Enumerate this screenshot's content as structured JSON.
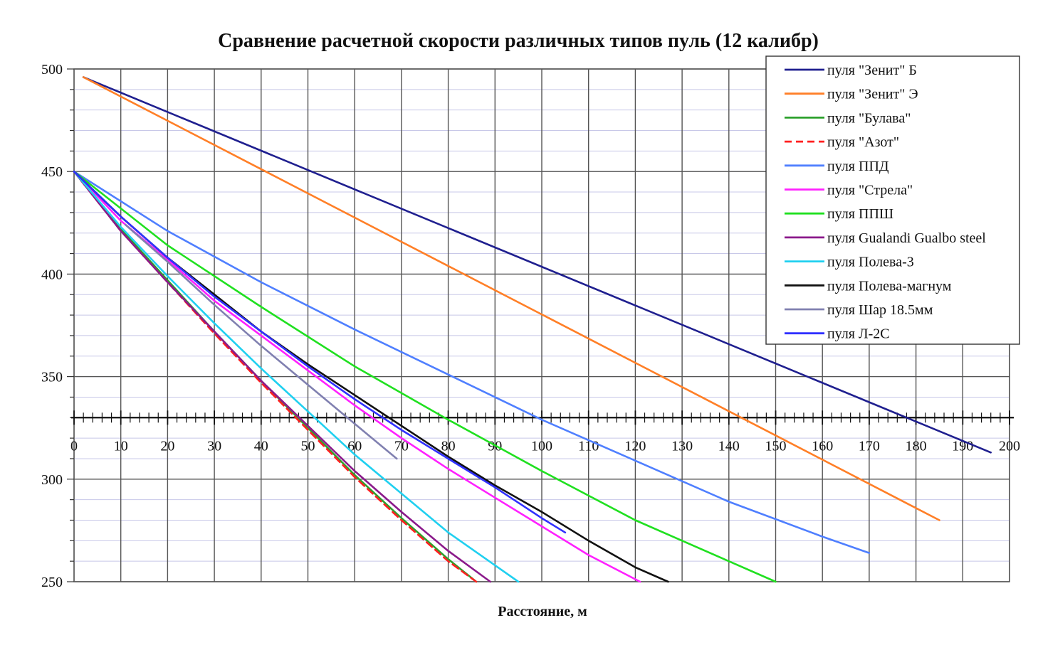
{
  "chart_data": {
    "type": "line",
    "title": "Сравнение расчетной скорости различных типов пуль (12 калибр)",
    "xlabel": "Расстояние, м",
    "ylabel": "",
    "xlim": [
      0,
      200
    ],
    "ylim": [
      250,
      500
    ],
    "x_ticks": [
      0,
      10,
      20,
      30,
      40,
      50,
      60,
      70,
      80,
      90,
      100,
      110,
      120,
      130,
      140,
      150,
      160,
      170,
      180,
      190,
      200
    ],
    "y_ticks": [
      250,
      300,
      350,
      400,
      450,
      500
    ],
    "x_axis_at_y": 330,
    "grid": true,
    "legend_position": "top-right",
    "series": [
      {
        "name": "пуля \"Зенит\" Б",
        "color": "#1f1f8f",
        "dash": false,
        "x": [
          2,
          196
        ],
        "y": [
          496,
          313
        ]
      },
      {
        "name": "пуля \"Зенит\" Э",
        "color": "#ff7f27",
        "dash": false,
        "x": [
          2,
          185
        ],
        "y": [
          496,
          280
        ]
      },
      {
        "name": "пуля \"Булава\"",
        "color": "#2ca02c",
        "dash": false,
        "x": [
          0,
          10,
          20,
          30,
          40,
          50,
          60,
          70,
          80,
          86
        ],
        "y": [
          450,
          422,
          397,
          372,
          348,
          325,
          302,
          281,
          261,
          250
        ]
      },
      {
        "name": "пуля \"Азот\"",
        "color": "#ff2020",
        "dash": true,
        "x": [
          0,
          10,
          20,
          30,
          40,
          50,
          60,
          70,
          80,
          86
        ],
        "y": [
          450,
          421,
          396,
          371,
          347,
          324,
          301,
          280,
          260,
          250
        ]
      },
      {
        "name": "пуля ППД",
        "color": "#4f7fff",
        "dash": false,
        "x": [
          0,
          20,
          40,
          60,
          80,
          100,
          120,
          140,
          160,
          170
        ],
        "y": [
          450,
          421,
          396,
          373,
          351,
          329,
          309,
          289,
          272,
          264
        ]
      },
      {
        "name": "пуля \"Стрела\"",
        "color": "#ff20ff",
        "dash": false,
        "x": [
          0,
          10,
          20,
          30,
          40,
          50,
          60,
          70,
          80,
          90,
          100,
          110,
          121
        ],
        "y": [
          450,
          426,
          407,
          387,
          370,
          353,
          336,
          320,
          305,
          291,
          277,
          263,
          250
        ]
      },
      {
        "name": "пуля ППШ",
        "color": "#20e020",
        "dash": false,
        "x": [
          0,
          20,
          40,
          60,
          80,
          100,
          120,
          140,
          150
        ],
        "y": [
          450,
          414,
          384,
          355,
          329,
          304,
          280,
          260,
          250
        ]
      },
      {
        "name": "пуля Gualandi Gualbo steel",
        "color": "#8b1a8b",
        "dash": false,
        "x": [
          0,
          10,
          20,
          30,
          40,
          50,
          60,
          70,
          80,
          89
        ],
        "y": [
          450,
          421,
          396,
          372,
          348,
          326,
          304,
          284,
          265,
          250
        ]
      },
      {
        "name": "пуля  Полева-3",
        "color": "#20d0f0",
        "dash": false,
        "x": [
          0,
          10,
          20,
          30,
          40,
          50,
          60,
          70,
          80,
          90,
          95
        ],
        "y": [
          450,
          423,
          399,
          376,
          354,
          333,
          312,
          293,
          274,
          258,
          250
        ]
      },
      {
        "name": "пуля  Полева-магнум",
        "color": "#111111",
        "dash": false,
        "x": [
          0,
          10,
          20,
          30,
          40,
          50,
          60,
          70,
          80,
          90,
          100,
          110,
          120,
          127
        ],
        "y": [
          450,
          428,
          408,
          390,
          372,
          356,
          341,
          326,
          311,
          297,
          284,
          270,
          257,
          250
        ]
      },
      {
        "name": "пуля Шар 18.5мм",
        "color": "#8080b0",
        "dash": false,
        "x": [
          11,
          20,
          30,
          40,
          50,
          60,
          69
        ],
        "y": [
          424,
          406,
          385,
          365,
          346,
          327,
          310
        ]
      },
      {
        "name": "пуля Л-2С",
        "color": "#3030ff",
        "dash": false,
        "x": [
          0,
          10,
          20,
          30,
          40,
          50,
          60,
          70,
          80,
          90,
          100,
          105
        ],
        "y": [
          450,
          428,
          408,
          389,
          372,
          355,
          339,
          324,
          310,
          296,
          281,
          274
        ]
      }
    ]
  }
}
